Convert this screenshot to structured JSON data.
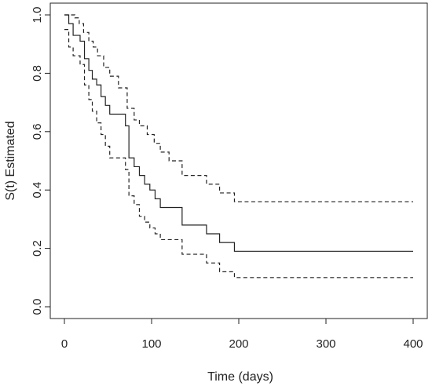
{
  "chart_data": {
    "type": "line",
    "title": "",
    "xlabel": "Time (days)",
    "ylabel": "S(t) Estimated",
    "xlim": [
      0,
      400
    ],
    "ylim": [
      0,
      1
    ],
    "x_ticks": [
      "0",
      "100",
      "200",
      "300",
      "400"
    ],
    "y_ticks": [
      "0.0",
      "0.2",
      "0.4",
      "0.6",
      "0.8",
      "1.0"
    ],
    "step": true,
    "grid": false,
    "legend": "none",
    "series": [
      {
        "style": "solid",
        "x": [
          0,
          5,
          10,
          18,
          23,
          28,
          32,
          37,
          42,
          47,
          52,
          70,
          74,
          80,
          86,
          92,
          98,
          104,
          110,
          135,
          163,
          178,
          195,
          400
        ],
        "y": [
          1.0,
          0.97,
          0.93,
          0.91,
          0.85,
          0.81,
          0.78,
          0.76,
          0.72,
          0.69,
          0.66,
          0.62,
          0.51,
          0.48,
          0.45,
          0.42,
          0.4,
          0.37,
          0.34,
          0.28,
          0.25,
          0.22,
          0.19,
          0.19
        ]
      },
      {
        "style": "dashed",
        "x": [
          0,
          12,
          17,
          22,
          28,
          33,
          38,
          45,
          52,
          62,
          72,
          80,
          86,
          95,
          103,
          110,
          120,
          135,
          163,
          178,
          195,
          400
        ],
        "y": [
          1.0,
          0.99,
          0.97,
          0.94,
          0.91,
          0.89,
          0.86,
          0.82,
          0.79,
          0.75,
          0.68,
          0.64,
          0.62,
          0.59,
          0.56,
          0.53,
          0.5,
          0.45,
          0.42,
          0.39,
          0.36,
          0.36
        ]
      },
      {
        "style": "dashed",
        "x": [
          0,
          5,
          10,
          18,
          23,
          28,
          32,
          37,
          42,
          47,
          52,
          70,
          74,
          80,
          86,
          92,
          98,
          104,
          110,
          135,
          163,
          178,
          195,
          400
        ],
        "y": [
          0.95,
          0.89,
          0.86,
          0.83,
          0.76,
          0.71,
          0.67,
          0.63,
          0.59,
          0.55,
          0.51,
          0.47,
          0.38,
          0.35,
          0.31,
          0.29,
          0.27,
          0.25,
          0.23,
          0.18,
          0.15,
          0.12,
          0.1,
          0.1
        ]
      }
    ]
  }
}
